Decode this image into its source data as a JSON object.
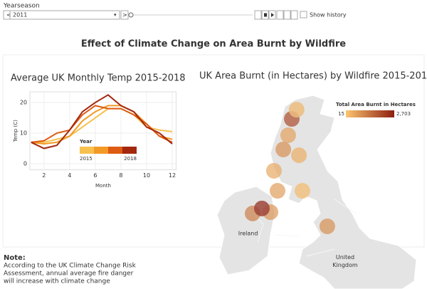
{
  "header": {
    "filter_label": "Yearseason",
    "filter_value": "2011",
    "show_history": "Show history"
  },
  "dashboard_title": "Effect of Climate Change on Area Burnt by Wildfire",
  "chart_data": [
    {
      "type": "line",
      "title": "Average UK Monthly Temp 2015-2018",
      "x_label": "Month",
      "y_label": "Temp (C)",
      "x": [
        1,
        2,
        3,
        4,
        5,
        6,
        7,
        8,
        9,
        10,
        11,
        12
      ],
      "series": [
        {
          "color": "#f7c14f",
          "values": [
            7,
            7,
            8,
            9,
            12,
            15,
            18,
            18,
            16,
            12,
            11,
            10.5
          ]
        },
        {
          "color": "#f39a26",
          "values": [
            7,
            6.5,
            7,
            9,
            14,
            17,
            19,
            19,
            17,
            13,
            9,
            8
          ]
        },
        {
          "color": "#dd5b12",
          "values": [
            7,
            7.5,
            10,
            11,
            16,
            19,
            18,
            18,
            16,
            13,
            9,
            7
          ]
        },
        {
          "color": "#a3280d",
          "values": [
            7,
            5,
            6,
            11,
            17,
            20,
            22.5,
            19,
            17,
            12,
            10,
            6.5
          ]
        }
      ],
      "xlim": [
        0.9,
        12.3
      ],
      "ylim": [
        -2,
        23.5
      ],
      "xticks": [
        2,
        4,
        6,
        8,
        10,
        12
      ],
      "yticks": [
        0,
        10,
        20
      ],
      "grid": true,
      "legend": {
        "title": "Year",
        "labels": [
          "2015",
          "2018"
        ]
      }
    },
    {
      "type": "map",
      "title": "UK Area Burnt (in Hectares) by Wildfire 2015-2018",
      "legend_title": "Total Area Burnt in Hectares",
      "color_range": [
        "#fcc56f",
        "#8c1d0f"
      ],
      "colorbar_ticks": [
        15,
        {
          "value": 2703,
          "label": "2,703"
        }
      ],
      "place_labels": [
        {
          "text": "Ireland",
          "lon": -8.1,
          "lat": 53.5
        },
        {
          "text": "United",
          "lon": -1.9,
          "lat": 52.6
        },
        {
          "text": "Kingdom",
          "lon": -1.9,
          "lat": 52.3
        }
      ],
      "points": [
        {
          "lon": -5.31,
          "lat": 57.85,
          "value": 2000
        },
        {
          "lon": -5.0,
          "lat": 58.2,
          "value": 300
        },
        {
          "lon": -5.54,
          "lat": 57.23,
          "value": 600
        },
        {
          "lon": -5.85,
          "lat": 56.69,
          "value": 900
        },
        {
          "lon": -4.85,
          "lat": 56.47,
          "value": 400
        },
        {
          "lon": -6.45,
          "lat": 55.88,
          "value": 500
        },
        {
          "lon": -6.22,
          "lat": 55.12,
          "value": 700
        },
        {
          "lon": -4.63,
          "lat": 55.12,
          "value": 200
        },
        {
          "lon": -7.81,
          "lat": 54.26,
          "value": 1200
        },
        {
          "lon": -6.67,
          "lat": 54.31,
          "value": 800
        },
        {
          "lon": -7.22,
          "lat": 54.45,
          "value": 2703
        },
        {
          "lon": -3.04,
          "lat": 53.77,
          "value": 900
        }
      ]
    }
  ],
  "note": {
    "heading": "Note:",
    "lines": [
      "According to the UK Climate Change Risk",
      "Assessment, annual average fire danger",
      "will increase with climate change"
    ]
  }
}
